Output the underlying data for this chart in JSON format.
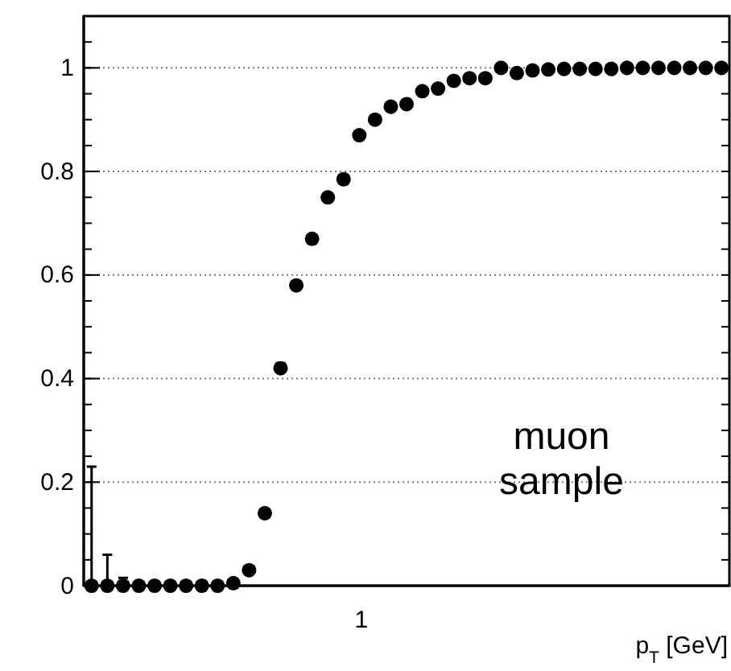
{
  "chart_data": {
    "type": "scatter",
    "xlabel": "p$_{T}$ [GeV]",
    "grid": "y",
    "marker": "circle",
    "ylim": [
      0,
      1.1
    ],
    "yticks": [
      0,
      0.2,
      0.4,
      0.6,
      0.8,
      1
    ],
    "annotations": [
      "1",
      "muon\nsample"
    ],
    "categories": [
      null,
      null,
      null,
      null,
      null,
      null,
      null,
      null,
      null,
      null,
      null,
      null,
      null,
      null,
      null,
      null,
      null,
      null,
      null,
      null,
      null,
      null,
      null,
      null,
      null,
      null,
      null,
      null,
      null,
      null,
      null,
      null,
      null,
      null,
      null,
      null,
      null,
      null,
      null,
      null,
      null
    ],
    "series": [
      {
        "color": "#000000",
        "values": [
          0,
          0,
          0,
          0,
          0,
          0,
          0,
          0,
          0,
          0.005,
          0.03,
          0.14,
          0.42,
          0.58,
          0.67,
          0.75,
          0.785,
          0.87,
          0.9,
          0.925,
          0.93,
          0.955,
          0.96,
          0.975,
          0.98,
          0.98,
          1.0,
          0.99,
          0.995,
          0.997,
          0.998,
          0.998,
          0.998,
          0.998,
          1.0,
          1.0,
          1.0,
          1.0,
          1.0,
          1.0,
          1.0
        ],
        "errors": [
          [
            0,
            0.23
          ],
          [
            0,
            0.06
          ],
          [
            0,
            0.015
          ],
          null,
          null,
          null,
          null,
          null,
          null,
          null,
          null,
          null,
          0.01,
          null,
          null,
          null,
          null,
          null,
          null,
          null,
          null,
          null,
          null,
          null,
          null,
          null,
          null,
          null,
          null,
          null,
          null,
          null,
          null,
          null,
          null,
          null,
          null,
          null,
          null,
          null,
          null
        ]
      }
    ]
  }
}
